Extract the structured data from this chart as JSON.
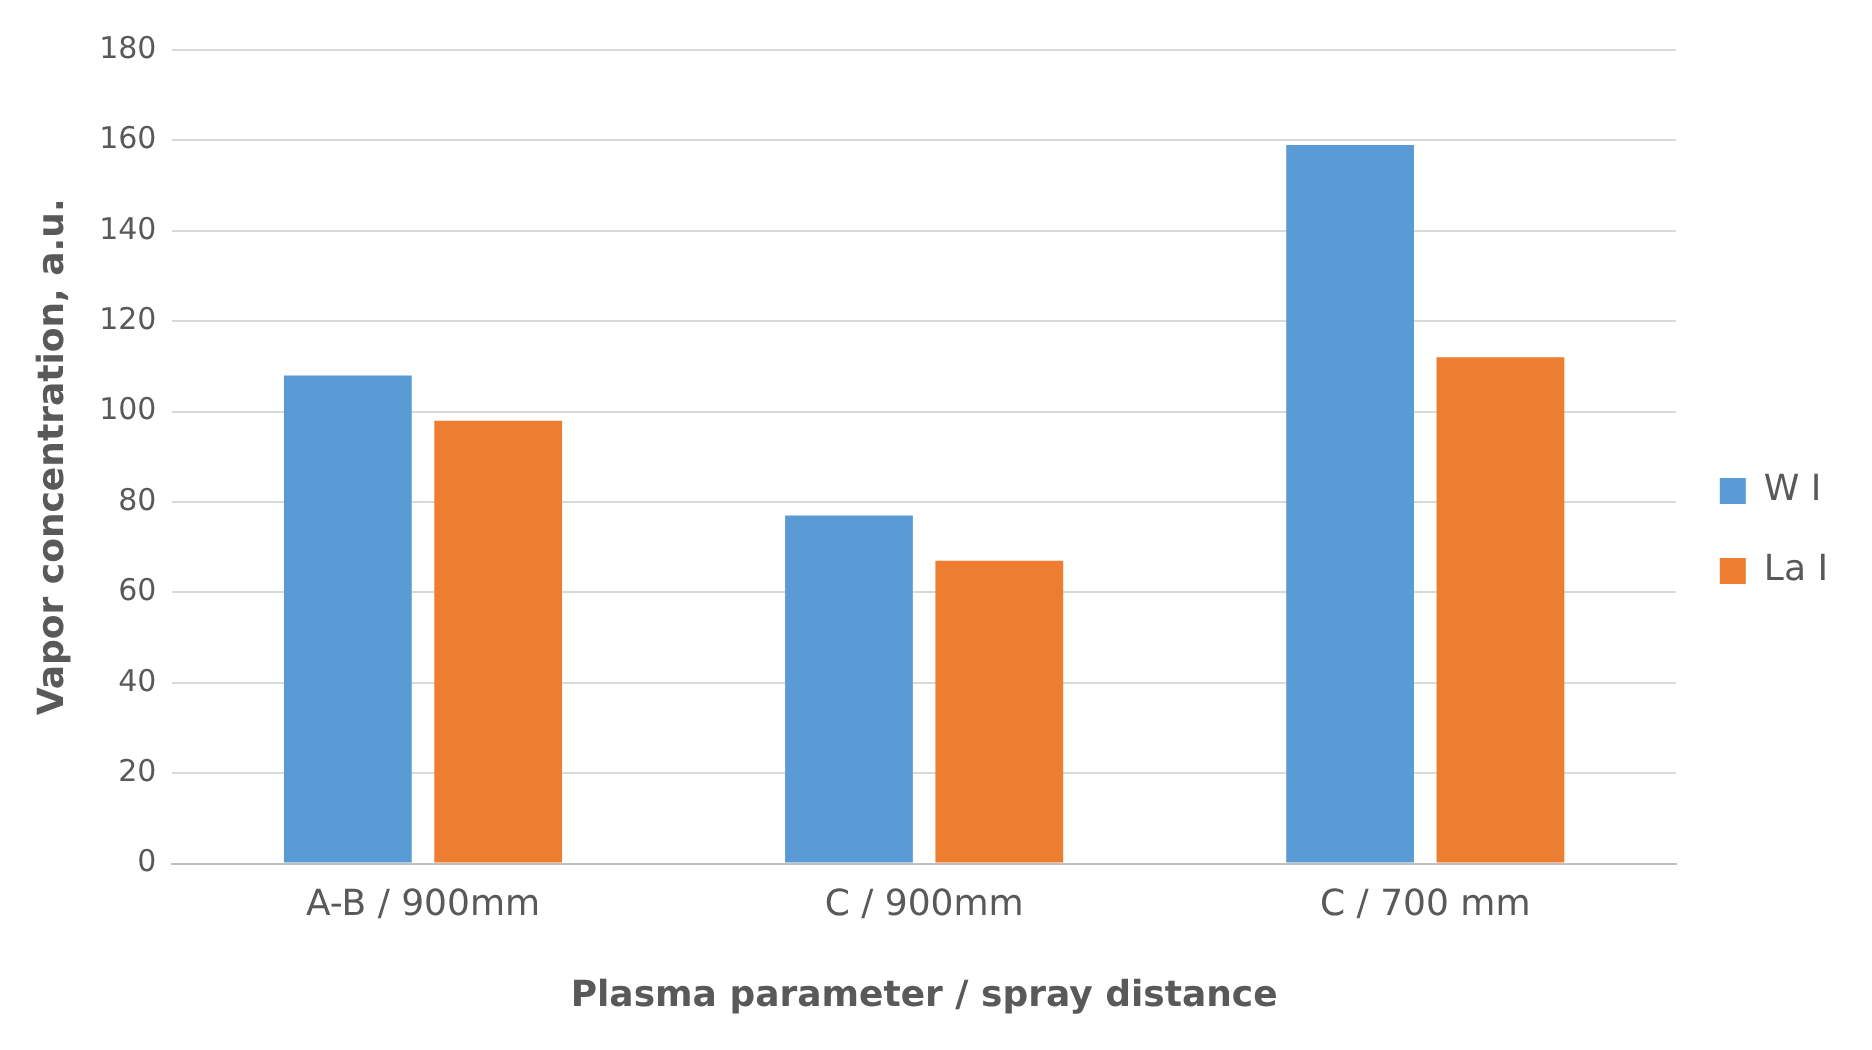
{
  "chart_data": {
    "type": "bar",
    "xlabel": "Plasma parameter / spray distance",
    "ylabel": "Vapor concentration, a.u.",
    "categories": [
      "A-B / 900mm",
      "C / 900mm",
      "C / 700 mm"
    ],
    "series": [
      {
        "name": "W I",
        "color": "#5b9bd5",
        "values": [
          108,
          77,
          159
        ]
      },
      {
        "name": "La I",
        "color": "#ed7d31",
        "values": [
          98,
          67,
          112
        ]
      }
    ],
    "ylim": [
      0,
      180
    ],
    "yticks": [
      0,
      20,
      40,
      60,
      80,
      100,
      120,
      140,
      160,
      180
    ],
    "grid": "y",
    "legend": "right"
  }
}
